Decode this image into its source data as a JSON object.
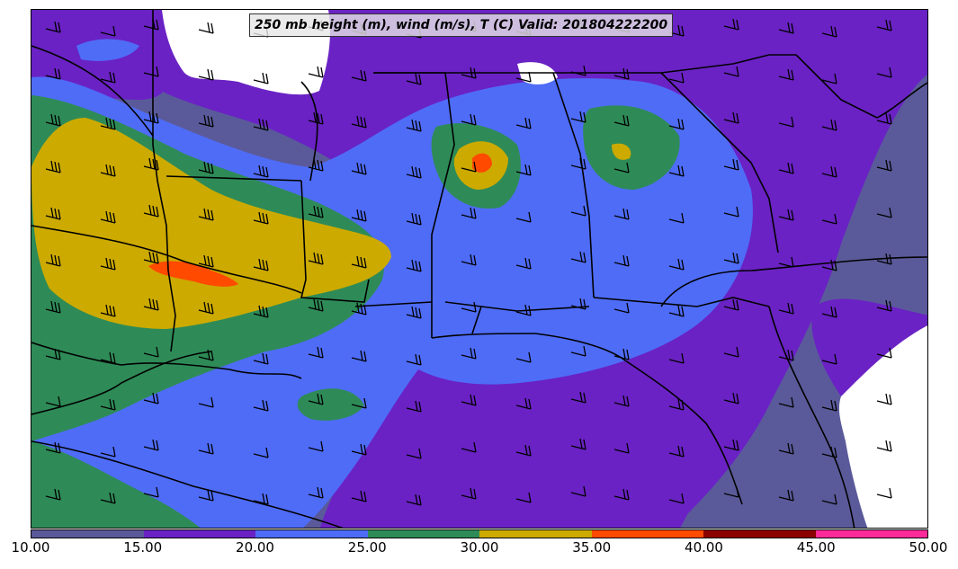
{
  "title": "250 mb height (m), wind (m/s), T (C) Valid: 201804222200",
  "colorbar": {
    "ticks": [
      "10.00",
      "15.00",
      "20.00",
      "25.00",
      "30.00",
      "35.00",
      "40.00",
      "45.00",
      "50.00"
    ],
    "colors": [
      "#5a5a9a",
      "#6a22c4",
      "#4f6cf7",
      "#2e8b57",
      "#ccaa00",
      "#ff4a00",
      "#8b0000",
      "#ff2a9a"
    ]
  },
  "map": {
    "background_color": "#5a5a9a",
    "wind_symbol": "wind-barb-icon",
    "boundary_color": "#000000"
  }
}
